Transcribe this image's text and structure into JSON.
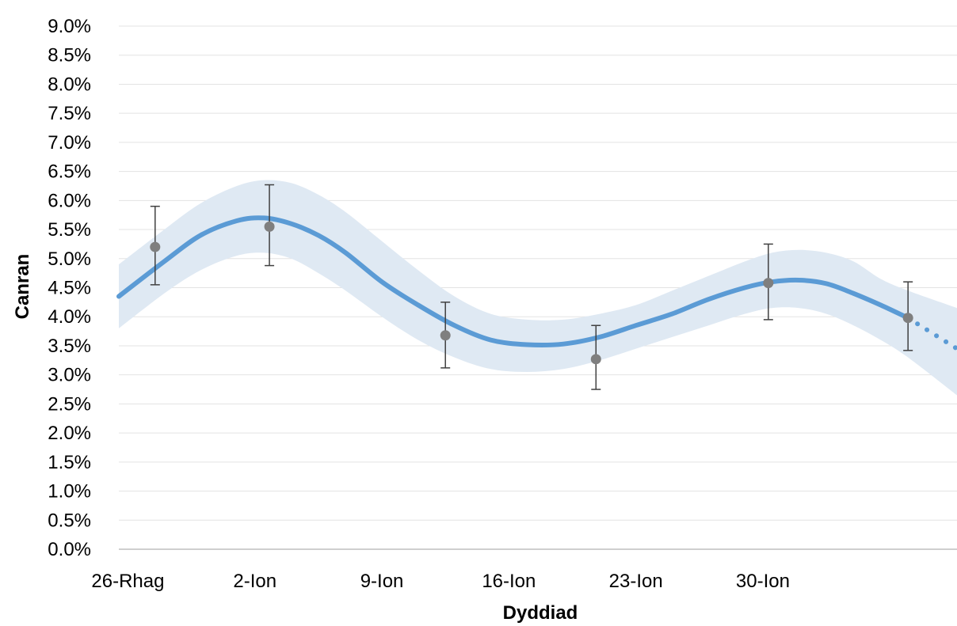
{
  "chart_data": {
    "type": "line",
    "title": "",
    "xlabel": "Dyddiad",
    "ylabel": "Canran",
    "x_ticks": [
      "26-Rhag",
      "2-Ion",
      "9-Ion",
      "16-Ion",
      "23-Ion",
      "30-Ion"
    ],
    "y_ticks": [
      "0.0%",
      "0.5%",
      "1.0%",
      "1.5%",
      "2.0%",
      "2.5%",
      "3.0%",
      "3.5%",
      "4.0%",
      "4.5%",
      "5.0%",
      "5.5%",
      "6.0%",
      "6.5%",
      "7.0%",
      "7.5%",
      "8.0%",
      "8.5%",
      "9.0%"
    ],
    "ylim": [
      0,
      9
    ],
    "xlim_days": [
      -0.5,
      45.7
    ],
    "grid": true,
    "series": [
      {
        "type": "line",
        "color": "#5b9bd5",
        "points": [
          [
            -0.5,
            4.35
          ],
          [
            2,
            4.95
          ],
          [
            4,
            5.4
          ],
          [
            6,
            5.65
          ],
          [
            7.5,
            5.7
          ],
          [
            9,
            5.6
          ],
          [
            10.5,
            5.4
          ],
          [
            12,
            5.1
          ],
          [
            14,
            4.6
          ],
          [
            16,
            4.2
          ],
          [
            18,
            3.85
          ],
          [
            20,
            3.6
          ],
          [
            22,
            3.52
          ],
          [
            24,
            3.53
          ],
          [
            26,
            3.65
          ],
          [
            28,
            3.85
          ],
          [
            30,
            4.05
          ],
          [
            32,
            4.3
          ],
          [
            34,
            4.5
          ],
          [
            35.5,
            4.6
          ],
          [
            37,
            4.63
          ],
          [
            38.5,
            4.57
          ],
          [
            40,
            4.4
          ],
          [
            41.5,
            4.2
          ],
          [
            43,
            3.98
          ]
        ]
      },
      {
        "type": "line-projection",
        "style": "dotted",
        "color": "#5b9bd5",
        "points": [
          [
            43,
            3.98
          ],
          [
            45.7,
            3.45
          ]
        ]
      },
      {
        "type": "area-band",
        "color": "#dfe9f3",
        "upper": [
          [
            -0.5,
            4.9
          ],
          [
            2,
            5.5
          ],
          [
            4,
            5.95
          ],
          [
            6,
            6.25
          ],
          [
            7.5,
            6.35
          ],
          [
            9,
            6.3
          ],
          [
            10.5,
            6.1
          ],
          [
            12,
            5.8
          ],
          [
            14,
            5.3
          ],
          [
            16,
            4.8
          ],
          [
            18,
            4.35
          ],
          [
            20,
            4.05
          ],
          [
            22,
            3.95
          ],
          [
            24,
            3.95
          ],
          [
            26,
            4.05
          ],
          [
            28,
            4.2
          ],
          [
            30,
            4.45
          ],
          [
            32,
            4.7
          ],
          [
            34,
            4.95
          ],
          [
            35.5,
            5.1
          ],
          [
            37,
            5.15
          ],
          [
            38.5,
            5.1
          ],
          [
            40,
            4.95
          ],
          [
            41.5,
            4.65
          ],
          [
            43,
            4.45
          ],
          [
            45.7,
            4.15
          ]
        ],
        "lower": [
          [
            -0.5,
            3.8
          ],
          [
            2,
            4.4
          ],
          [
            4,
            4.8
          ],
          [
            6,
            5.05
          ],
          [
            7.5,
            5.1
          ],
          [
            9,
            5.0
          ],
          [
            10.5,
            4.75
          ],
          [
            12,
            4.45
          ],
          [
            14,
            4.0
          ],
          [
            16,
            3.6
          ],
          [
            18,
            3.3
          ],
          [
            20,
            3.1
          ],
          [
            22,
            3.05
          ],
          [
            24,
            3.1
          ],
          [
            26,
            3.25
          ],
          [
            28,
            3.45
          ],
          [
            30,
            3.65
          ],
          [
            32,
            3.85
          ],
          [
            34,
            4.05
          ],
          [
            35.5,
            4.15
          ],
          [
            37,
            4.15
          ],
          [
            38.5,
            4.05
          ],
          [
            40,
            3.85
          ],
          [
            41.5,
            3.6
          ],
          [
            43,
            3.3
          ],
          [
            45.7,
            2.65
          ]
        ]
      },
      {
        "type": "scatter-errorbar",
        "color": "#7f7f7f",
        "points": [
          {
            "x": 1.5,
            "y": 5.2,
            "low": 4.55,
            "high": 5.9
          },
          {
            "x": 7.8,
            "y": 5.55,
            "low": 4.88,
            "high": 6.27
          },
          {
            "x": 17.5,
            "y": 3.68,
            "low": 3.12,
            "high": 4.25
          },
          {
            "x": 25.8,
            "y": 3.27,
            "low": 2.75,
            "high": 3.85
          },
          {
            "x": 35.3,
            "y": 4.58,
            "low": 3.95,
            "high": 5.25
          },
          {
            "x": 43.0,
            "y": 3.98,
            "low": 3.42,
            "high": 4.6
          }
        ]
      }
    ]
  }
}
